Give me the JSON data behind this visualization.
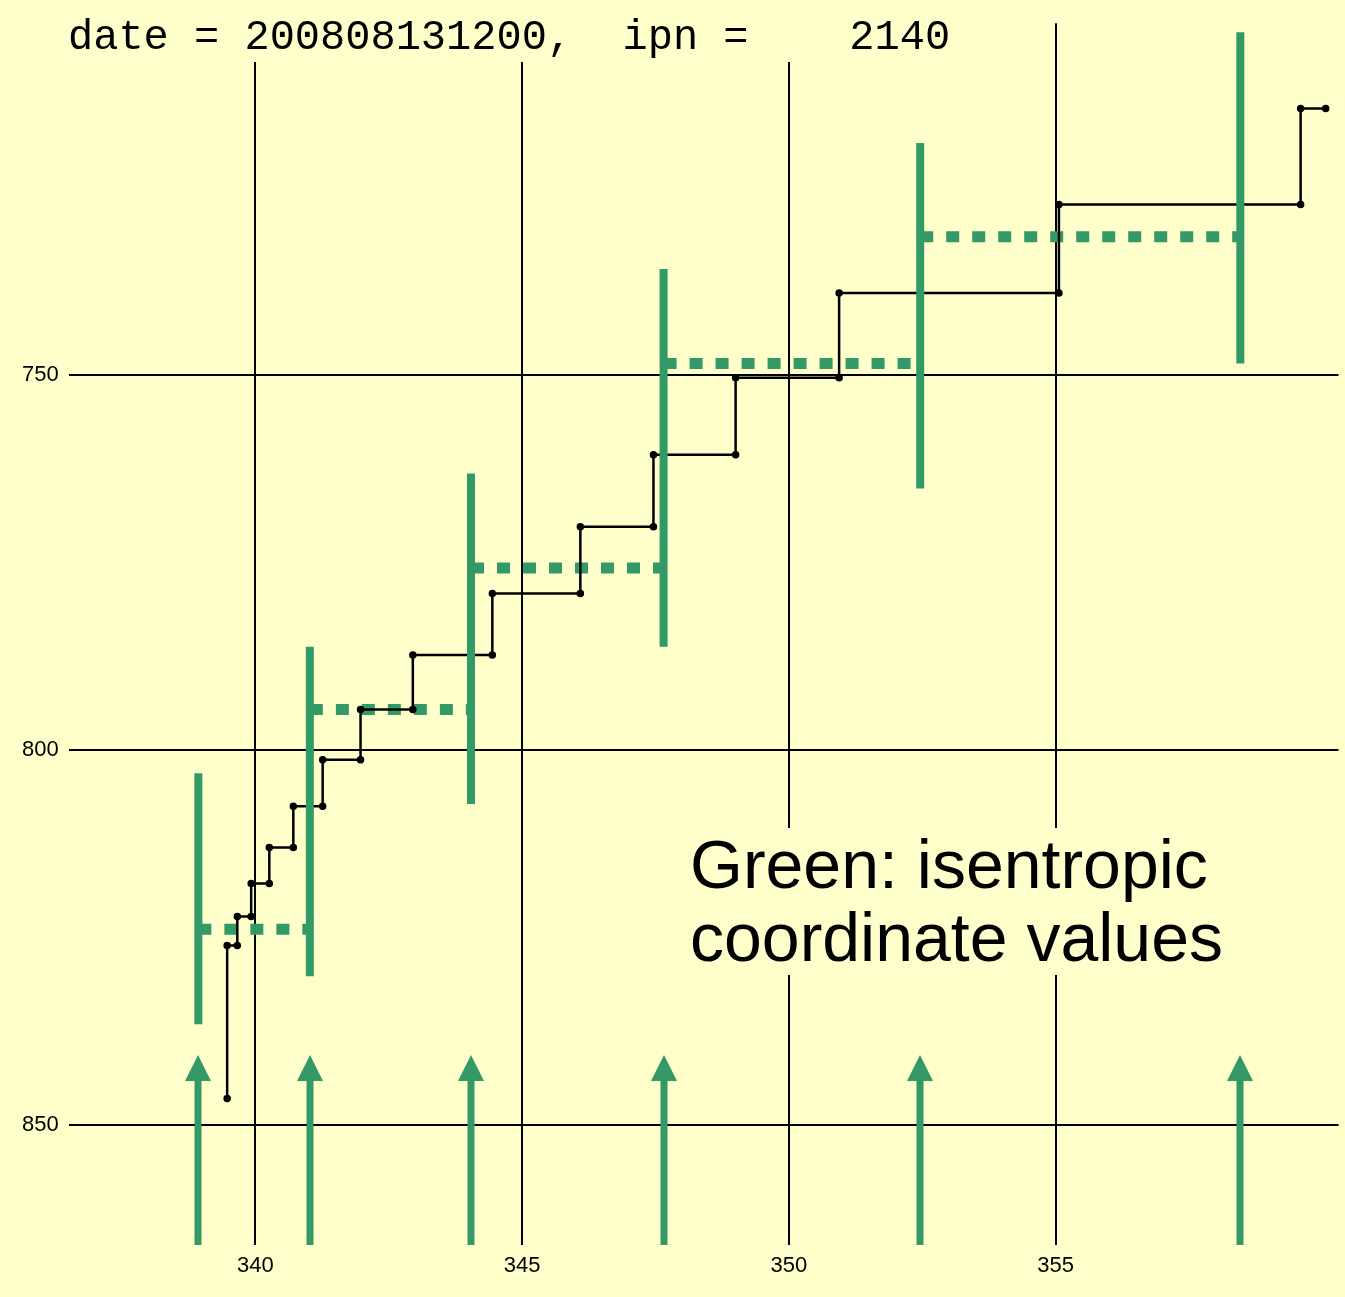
{
  "chart_data": {
    "type": "line",
    "title": "date = 200808131200,  ipn =    2140",
    "annotations": [
      "Green: isentropic coordinate values"
    ],
    "xlim": [
      336.5,
      360.3
    ],
    "xticks": [
      340,
      345,
      350,
      355
    ],
    "ylim": [
      866,
      703
    ],
    "yticks": [
      750,
      800,
      850
    ],
    "grid": true,
    "series": [
      {
        "type": "line",
        "color": "#000000",
        "marker": "circle",
        "line_style": "solid",
        "x": [
          339.47,
          339.47,
          339.66,
          339.66,
          339.92,
          339.92,
          340.26,
          340.26,
          340.71,
          340.71,
          341.26,
          341.26,
          341.97,
          341.97,
          342.95,
          342.95,
          344.44,
          344.44,
          346.09,
          346.09,
          347.46,
          347.46,
          349.0,
          349.0,
          350.94,
          350.94,
          355.06,
          355.06,
          359.59,
          359.59,
          360.06
        ],
        "values": [
          846.5,
          826.1,
          826.1,
          822.2,
          822.2,
          817.8,
          817.8,
          813.0,
          813.0,
          807.5,
          807.5,
          801.3,
          801.3,
          794.6,
          794.6,
          787.3,
          787.3,
          779.1,
          779.1,
          770.2,
          770.2,
          760.6,
          760.6,
          750.3,
          750.3,
          739.0,
          739.0,
          727.2,
          727.2,
          714.4,
          714.4
        ]
      },
      {
        "type": "step",
        "color": "#339966",
        "line_style": "dashed",
        "x": [
          338.93,
          341.02,
          344.04,
          347.65,
          352.46,
          358.46
        ],
        "values": [
          823.9,
          794.6,
          775.7,
          748.4,
          731.5,
          731.5
        ],
        "errors": [
          [
            803.1,
            836.6
          ],
          [
            786.2,
            830.2
          ],
          [
            763.1,
            807.2
          ],
          [
            735.8,
            786.2
          ],
          [
            719.0,
            765.1
          ],
          [
            704.2,
            748.4
          ]
        ]
      }
    ]
  }
}
